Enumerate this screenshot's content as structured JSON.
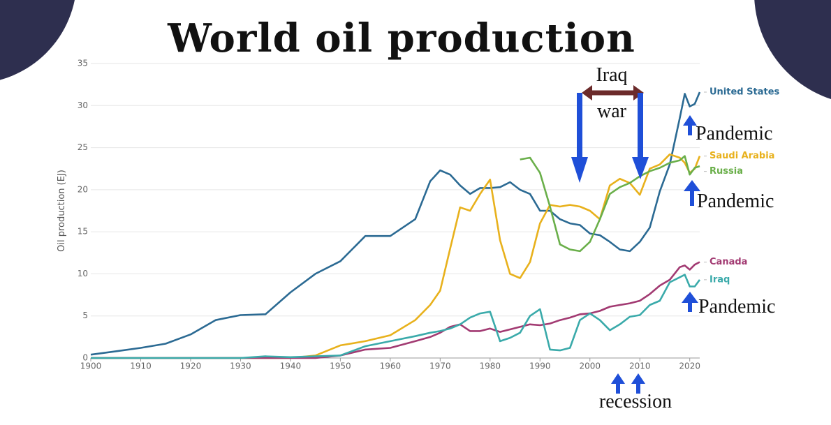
{
  "chart_data": {
    "type": "line",
    "title": "World oil production",
    "y_label": "Oil production (EJ)",
    "x": [
      1900,
      1905,
      1910,
      1915,
      1920,
      1925,
      1930,
      1935,
      1940,
      1945,
      1950,
      1955,
      1960,
      1965,
      1968,
      1970,
      1972,
      1974,
      1976,
      1978,
      1980,
      1982,
      1984,
      1986,
      1988,
      1990,
      1992,
      1994,
      1996,
      1998,
      2000,
      2002,
      2004,
      2006,
      2008,
      2010,
      2012,
      2014,
      2016,
      2018,
      2019,
      2020,
      2021,
      2022
    ],
    "series": [
      {
        "name": "United States",
        "color": "#2b6a93",
        "values": [
          0.4,
          0.8,
          1.2,
          1.7,
          2.8,
          4.5,
          5.1,
          5.2,
          7.8,
          10,
          11.5,
          14.5,
          14.5,
          16.5,
          21,
          22.3,
          21.8,
          20.5,
          19.5,
          20.2,
          20.2,
          20.3,
          20.9,
          20,
          19.5,
          17.5,
          17.5,
          16.5,
          16,
          15.8,
          14.8,
          14.6,
          13.8,
          12.9,
          12.7,
          13.8,
          15.5,
          19.8,
          23,
          28.5,
          31.4,
          29.9,
          30.2,
          31.6
        ]
      },
      {
        "name": "Saudi Arabia",
        "color": "#e8b11c",
        "values": [
          0,
          0,
          0,
          0,
          0,
          0,
          0,
          0,
          0,
          0.3,
          1.5,
          2,
          2.7,
          4.5,
          6.3,
          8,
          13,
          17.9,
          17.5,
          19.5,
          21.2,
          14,
          10,
          9.5,
          11.4,
          16,
          18.2,
          18,
          18.2,
          18,
          17.5,
          16.5,
          20.5,
          21.3,
          20.8,
          19.4,
          22.5,
          23,
          24.2,
          23.8,
          23.2,
          22,
          22.5,
          24
        ]
      },
      {
        "name": "Russia",
        "color": "#6aaf4a",
        "values": [
          null,
          null,
          null,
          null,
          null,
          null,
          null,
          null,
          null,
          null,
          null,
          null,
          null,
          null,
          null,
          null,
          null,
          null,
          null,
          null,
          null,
          null,
          null,
          23.6,
          23.8,
          22,
          18,
          13.5,
          12.9,
          12.7,
          13.8,
          16.5,
          19.5,
          20.3,
          20.8,
          21.6,
          22.2,
          22.6,
          23.2,
          23.5,
          24,
          21.8,
          22.6,
          22.8
        ]
      },
      {
        "name": "Canada",
        "color": "#a23a72",
        "values": [
          0,
          0,
          0,
          0,
          0,
          0,
          0,
          0,
          0,
          0,
          0.3,
          1,
          1.2,
          2,
          2.5,
          3,
          3.7,
          4,
          3.2,
          3.2,
          3.5,
          3.1,
          3.4,
          3.7,
          4,
          3.9,
          4.1,
          4.5,
          4.8,
          5.2,
          5.3,
          5.6,
          6.1,
          6.3,
          6.5,
          6.8,
          7.6,
          8.6,
          9.3,
          10.8,
          11,
          10.5,
          11.1,
          11.4
        ]
      },
      {
        "name": "Iraq",
        "color": "#3aaaaa",
        "values": [
          0,
          0,
          0,
          0,
          0,
          0,
          0,
          0.2,
          0.1,
          0.2,
          0.3,
          1.4,
          2,
          2.6,
          3,
          3.2,
          3.5,
          4,
          4.8,
          5.3,
          5.5,
          2,
          2.4,
          3,
          5,
          5.8,
          1,
          0.9,
          1.2,
          4.5,
          5.3,
          4.5,
          3.3,
          4,
          4.9,
          5.1,
          6.3,
          6.8,
          9,
          9.6,
          9.9,
          8.5,
          8.5,
          9.3
        ]
      }
    ],
    "xlim": [
      1900,
      2022
    ],
    "ylim": [
      0,
      35
    ],
    "xticks": [
      1900,
      1910,
      1920,
      1930,
      1940,
      1950,
      1960,
      1970,
      1980,
      1990,
      2000,
      2010,
      2020
    ],
    "yticks": [
      0,
      5,
      10,
      15,
      20,
      25,
      30,
      35
    ],
    "grid": true,
    "annotations": [
      "Iraq",
      "war",
      "Pandemic",
      "Pandemic",
      "Pandemic",
      "recession"
    ]
  }
}
